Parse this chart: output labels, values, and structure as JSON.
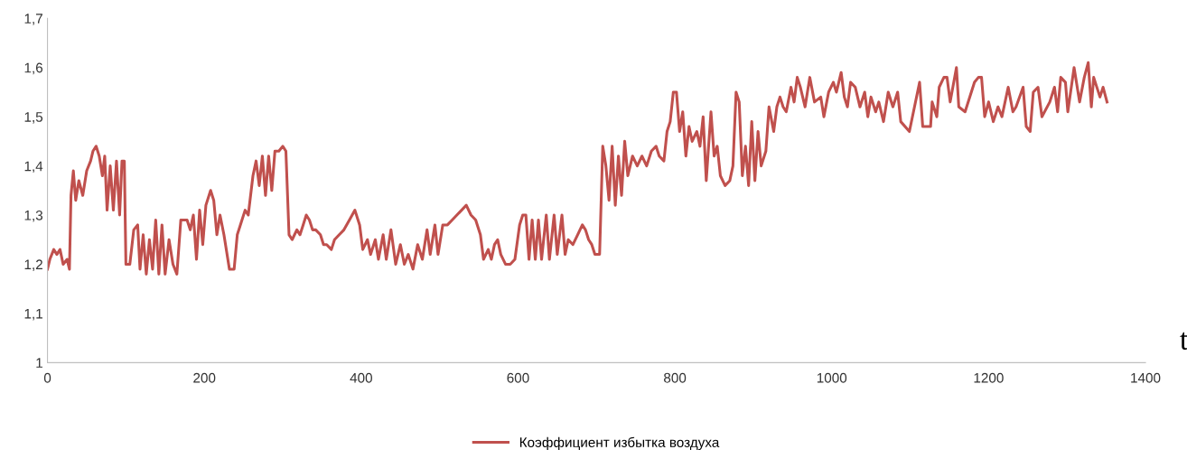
{
  "chart_data": {
    "type": "line",
    "xlabel": "t",
    "xlim": [
      0,
      1400
    ],
    "xticks": [
      0,
      200,
      400,
      600,
      800,
      1000,
      1200,
      1400
    ],
    "ylim": [
      1,
      1.7
    ],
    "yticks": [
      {
        "value": 1,
        "label": "1"
      },
      {
        "value": 1.1,
        "label": "1,1"
      },
      {
        "value": 1.2,
        "label": "1,2"
      },
      {
        "value": 1.3,
        "label": "1,3"
      },
      {
        "value": 1.4,
        "label": "1,4"
      },
      {
        "value": 1.5,
        "label": "1,5"
      },
      {
        "value": 1.6,
        "label": "1,6"
      },
      {
        "value": 1.7,
        "label": "1,7"
      }
    ],
    "grid": false,
    "legend": "bottom",
    "marker": "none",
    "line_style": "solid",
    "series": [
      {
        "name": "Коэффициент избытка воздуха",
        "color": "#c0504d",
        "x": [
          0,
          3,
          8,
          12,
          16,
          20,
          25,
          28,
          30,
          33,
          36,
          40,
          45,
          50,
          55,
          58,
          62,
          66,
          70,
          73,
          76,
          80,
          84,
          88,
          92,
          95,
          98,
          100,
          105,
          110,
          115,
          118,
          122,
          126,
          130,
          134,
          138,
          142,
          146,
          150,
          155,
          160,
          165,
          170,
          178,
          182,
          186,
          190,
          194,
          198,
          202,
          208,
          212,
          216,
          220,
          225,
          232,
          238,
          242,
          248,
          252,
          256,
          262,
          266,
          270,
          274,
          278,
          282,
          286,
          290,
          295,
          300,
          304,
          308,
          312,
          318,
          322,
          326,
          330,
          334,
          338,
          342,
          348,
          352,
          356,
          362,
          366,
          372,
          378,
          385,
          392,
          398,
          402,
          408,
          412,
          418,
          422,
          428,
          432,
          438,
          444,
          450,
          455,
          460,
          466,
          472,
          478,
          484,
          488,
          494,
          498,
          504,
          510,
          516,
          522,
          528,
          534,
          540,
          546,
          552,
          556,
          562,
          566,
          570,
          574,
          578,
          584,
          590,
          596,
          602,
          606,
          610,
          614,
          618,
          622,
          626,
          630,
          636,
          640,
          646,
          650,
          656,
          660,
          664,
          670,
          676,
          682,
          686,
          690,
          694,
          698,
          704,
          708,
          712,
          716,
          720,
          724,
          728,
          732,
          736,
          740,
          746,
          752,
          758,
          764,
          770,
          776,
          780,
          786,
          790,
          794,
          798,
          802,
          806,
          810,
          814,
          818,
          822,
          828,
          832,
          836,
          840,
          846,
          850,
          854,
          858,
          864,
          870,
          874,
          878,
          882,
          886,
          890,
          894,
          898,
          902,
          906,
          910,
          916,
          920,
          926,
          930,
          934,
          938,
          942,
          948,
          952,
          956,
          960,
          966,
          972,
          978,
          986,
          990,
          996,
          1002,
          1006,
          1012,
          1016,
          1020,
          1024,
          1030,
          1036,
          1042,
          1046,
          1050,
          1056,
          1060,
          1066,
          1072,
          1078,
          1084,
          1088,
          1099,
          1112,
          1116,
          1126,
          1128,
          1134,
          1137,
          1143,
          1147,
          1151,
          1159,
          1162,
          1170,
          1182,
          1187,
          1191,
          1195,
          1200,
          1206,
          1212,
          1217,
          1225,
          1231,
          1235,
          1244,
          1248,
          1253,
          1257,
          1263,
          1268,
          1278,
          1284,
          1288,
          1292,
          1298,
          1301,
          1309,
          1316,
          1322,
          1327,
          1331,
          1334,
          1342,
          1346,
          1351
        ],
        "values": [
          1.19,
          1.21,
          1.23,
          1.22,
          1.23,
          1.2,
          1.21,
          1.19,
          1.34,
          1.39,
          1.33,
          1.37,
          1.34,
          1.39,
          1.41,
          1.43,
          1.44,
          1.42,
          1.38,
          1.42,
          1.31,
          1.4,
          1.31,
          1.41,
          1.3,
          1.41,
          1.41,
          1.2,
          1.2,
          1.27,
          1.28,
          1.19,
          1.26,
          1.18,
          1.25,
          1.19,
          1.29,
          1.18,
          1.28,
          1.18,
          1.25,
          1.2,
          1.18,
          1.29,
          1.29,
          1.27,
          1.3,
          1.21,
          1.31,
          1.24,
          1.32,
          1.35,
          1.33,
          1.26,
          1.3,
          1.26,
          1.19,
          1.19,
          1.26,
          1.29,
          1.31,
          1.3,
          1.38,
          1.41,
          1.36,
          1.42,
          1.34,
          1.42,
          1.35,
          1.43,
          1.43,
          1.44,
          1.43,
          1.26,
          1.25,
          1.27,
          1.26,
          1.28,
          1.3,
          1.29,
          1.27,
          1.27,
          1.26,
          1.24,
          1.24,
          1.23,
          1.25,
          1.26,
          1.27,
          1.29,
          1.31,
          1.28,
          1.23,
          1.25,
          1.22,
          1.25,
          1.21,
          1.26,
          1.21,
          1.27,
          1.2,
          1.24,
          1.2,
          1.22,
          1.19,
          1.24,
          1.21,
          1.27,
          1.22,
          1.28,
          1.22,
          1.28,
          1.28,
          1.29,
          1.3,
          1.31,
          1.32,
          1.3,
          1.29,
          1.26,
          1.21,
          1.23,
          1.21,
          1.24,
          1.25,
          1.22,
          1.2,
          1.2,
          1.21,
          1.28,
          1.3,
          1.3,
          1.21,
          1.29,
          1.21,
          1.29,
          1.21,
          1.3,
          1.21,
          1.3,
          1.22,
          1.3,
          1.22,
          1.25,
          1.24,
          1.26,
          1.28,
          1.27,
          1.25,
          1.24,
          1.22,
          1.22,
          1.44,
          1.4,
          1.33,
          1.44,
          1.32,
          1.42,
          1.34,
          1.45,
          1.38,
          1.42,
          1.4,
          1.42,
          1.4,
          1.43,
          1.44,
          1.42,
          1.41,
          1.47,
          1.49,
          1.55,
          1.55,
          1.47,
          1.51,
          1.42,
          1.48,
          1.45,
          1.47,
          1.44,
          1.5,
          1.37,
          1.51,
          1.42,
          1.44,
          1.38,
          1.36,
          1.37,
          1.4,
          1.55,
          1.53,
          1.38,
          1.44,
          1.36,
          1.49,
          1.37,
          1.47,
          1.4,
          1.43,
          1.52,
          1.47,
          1.52,
          1.54,
          1.52,
          1.51,
          1.56,
          1.53,
          1.58,
          1.56,
          1.52,
          1.58,
          1.53,
          1.54,
          1.5,
          1.55,
          1.57,
          1.55,
          1.59,
          1.54,
          1.52,
          1.57,
          1.56,
          1.52,
          1.55,
          1.5,
          1.54,
          1.51,
          1.53,
          1.49,
          1.55,
          1.52,
          1.55,
          1.49,
          1.47,
          1.57,
          1.48,
          1.48,
          1.53,
          1.5,
          1.56,
          1.58,
          1.58,
          1.53,
          1.6,
          1.52,
          1.51,
          1.57,
          1.58,
          1.58,
          1.5,
          1.53,
          1.49,
          1.52,
          1.5,
          1.56,
          1.51,
          1.52,
          1.56,
          1.48,
          1.47,
          1.55,
          1.56,
          1.5,
          1.53,
          1.56,
          1.51,
          1.58,
          1.57,
          1.51,
          1.6,
          1.53,
          1.58,
          1.61,
          1.52,
          1.58,
          1.54,
          1.56,
          1.53
        ]
      }
    ]
  }
}
